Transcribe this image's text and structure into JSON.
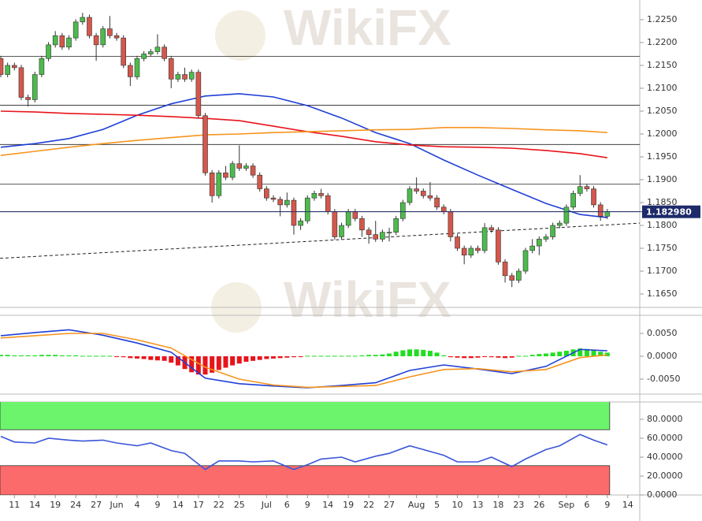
{
  "watermark": "WikiFX",
  "chart_data": [
    {
      "type": "candlestick",
      "xlim": [
        -0.116,
        93.76
      ],
      "ylim": [
        1.16207,
        1.2293
      ],
      "colors": {
        "up": "#4cbb4c",
        "down": "#d4574c"
      },
      "yticks": [
        {
          "value": 1.225,
          "label": "1.2250"
        },
        {
          "value": 1.22,
          "label": "1.2200"
        },
        {
          "value": 1.215,
          "label": "1.2150"
        },
        {
          "value": 1.21,
          "label": "1.2100"
        },
        {
          "value": 1.205,
          "label": "1.2050"
        },
        {
          "value": 1.2,
          "label": "1.2000"
        },
        {
          "value": 1.195,
          "label": "1.1950"
        },
        {
          "value": 1.19,
          "label": "1.1900"
        },
        {
          "value": 1.185,
          "label": "1.1850"
        },
        {
          "value": 1.18,
          "label": "1.1800"
        },
        {
          "value": 1.175,
          "label": "1.1750"
        },
        {
          "value": 1.17,
          "label": "1.1700"
        },
        {
          "value": 1.165,
          "label": "1.1650"
        }
      ],
      "last_price": {
        "value": 1.18298,
        "label": "1.182980"
      },
      "levels": [
        1.217,
        1.2063,
        1.1977,
        1.189,
        1.183
      ],
      "trendline": {
        "x": [
          -0.116,
          93.76
        ],
        "values": [
          1.1728,
          1.1805
        ]
      },
      "ohlc": [
        [
          1.2165,
          1.2171,
          1.2124,
          1.213
        ],
        [
          1.213,
          1.2156,
          1.2124,
          1.215
        ],
        [
          1.215,
          1.2156,
          1.2139,
          1.2145
        ],
        [
          1.2145,
          1.2151,
          1.2074,
          1.208
        ],
        [
          1.208,
          1.2086,
          1.206,
          1.2075
        ],
        [
          1.2075,
          1.2136,
          1.2069,
          1.213
        ],
        [
          1.213,
          1.2171,
          1.2124,
          1.2165
        ],
        [
          1.2165,
          1.2201,
          1.2159,
          1.2195
        ],
        [
          1.2195,
          1.2225,
          1.2189,
          1.2215
        ],
        [
          1.2215,
          1.2221,
          1.2184,
          1.219
        ],
        [
          1.219,
          1.2216,
          1.2184,
          1.221
        ],
        [
          1.221,
          1.2251,
          1.2204,
          1.2245
        ],
        [
          1.2245,
          1.2265,
          1.2239,
          1.2255
        ],
        [
          1.2255,
          1.2261,
          1.2209,
          1.2215
        ],
        [
          1.2215,
          1.2221,
          1.216,
          1.2195
        ],
        [
          1.2195,
          1.2236,
          1.2189,
          1.223
        ],
        [
          1.223,
          1.2258,
          1.2209,
          1.2215
        ],
        [
          1.2215,
          1.2221,
          1.2204,
          1.221
        ],
        [
          1.221,
          1.2216,
          1.2144,
          1.215
        ],
        [
          1.215,
          1.2156,
          1.2105,
          1.2125
        ],
        [
          1.2125,
          1.2171,
          1.2119,
          1.2165
        ],
        [
          1.2165,
          1.2181,
          1.2159,
          1.2175
        ],
        [
          1.2175,
          1.2186,
          1.2169,
          1.218
        ],
        [
          1.218,
          1.2218,
          1.2174,
          1.219
        ],
        [
          1.219,
          1.2196,
          1.2159,
          1.2165
        ],
        [
          1.2165,
          1.2171,
          1.21,
          1.212
        ],
        [
          1.212,
          1.2136,
          1.2114,
          1.213
        ],
        [
          1.213,
          1.2145,
          1.2114,
          1.212
        ],
        [
          1.212,
          1.2141,
          1.2114,
          1.2135
        ],
        [
          1.2135,
          1.2141,
          1.2034,
          1.204
        ],
        [
          1.204,
          1.2046,
          1.1909,
          1.1915
        ],
        [
          1.1915,
          1.1921,
          1.185,
          1.1865
        ],
        [
          1.1865,
          1.1921,
          1.1859,
          1.1915
        ],
        [
          1.1915,
          1.193,
          1.1899,
          1.1905
        ],
        [
          1.1905,
          1.1941,
          1.1899,
          1.1935
        ],
        [
          1.1935,
          1.1975,
          1.1919,
          1.1925
        ],
        [
          1.1925,
          1.1936,
          1.1919,
          1.193
        ],
        [
          1.193,
          1.1936,
          1.1904,
          1.191
        ],
        [
          1.191,
          1.1916,
          1.1874,
          1.188
        ],
        [
          1.188,
          1.1886,
          1.1854,
          1.186
        ],
        [
          1.186,
          1.1866,
          1.1851,
          1.1857
        ],
        [
          1.1857,
          1.1863,
          1.182,
          1.1845
        ],
        [
          1.1845,
          1.1872,
          1.1839,
          1.1855
        ],
        [
          1.1855,
          1.1861,
          1.178,
          1.18
        ],
        [
          1.18,
          1.1816,
          1.179,
          1.181
        ],
        [
          1.181,
          1.1866,
          1.1804,
          1.186
        ],
        [
          1.186,
          1.1876,
          1.1854,
          1.187
        ],
        [
          1.187,
          1.188,
          1.1859,
          1.1865
        ],
        [
          1.1865,
          1.1871,
          1.1824,
          1.183
        ],
        [
          1.183,
          1.1836,
          1.1769,
          1.1775
        ],
        [
          1.1775,
          1.1806,
          1.1769,
          1.18
        ],
        [
          1.18,
          1.1836,
          1.1794,
          1.183
        ],
        [
          1.183,
          1.1836,
          1.1809,
          1.1815
        ],
        [
          1.1815,
          1.1821,
          1.1775,
          1.179
        ],
        [
          1.179,
          1.1796,
          1.176,
          1.178
        ],
        [
          1.178,
          1.181,
          1.1764,
          1.177
        ],
        [
          1.177,
          1.1791,
          1.1764,
          1.1785
        ],
        [
          1.1785,
          1.1795,
          1.1765,
          1.1785
        ],
        [
          1.1785,
          1.1821,
          1.1779,
          1.1815
        ],
        [
          1.1815,
          1.1856,
          1.1809,
          1.185
        ],
        [
          1.185,
          1.1886,
          1.1844,
          1.188
        ],
        [
          1.188,
          1.1905,
          1.1869,
          1.1875
        ],
        [
          1.1875,
          1.1881,
          1.1859,
          1.1865
        ],
        [
          1.1865,
          1.1895,
          1.1854,
          1.186
        ],
        [
          1.186,
          1.1866,
          1.1834,
          1.184
        ],
        [
          1.184,
          1.1846,
          1.1824,
          1.183
        ],
        [
          1.183,
          1.1836,
          1.1765,
          1.1775
        ],
        [
          1.1775,
          1.1781,
          1.1744,
          1.175
        ],
        [
          1.175,
          1.1756,
          1.1715,
          1.1735
        ],
        [
          1.1735,
          1.1756,
          1.1729,
          1.175
        ],
        [
          1.175,
          1.1756,
          1.1739,
          1.1745
        ],
        [
          1.1745,
          1.1805,
          1.1739,
          1.1795
        ],
        [
          1.1795,
          1.1801,
          1.1784,
          1.179
        ],
        [
          1.179,
          1.1796,
          1.1714,
          1.172
        ],
        [
          1.172,
          1.1726,
          1.1675,
          1.169
        ],
        [
          1.169,
          1.1696,
          1.1665,
          1.168
        ],
        [
          1.168,
          1.1706,
          1.1674,
          1.17
        ],
        [
          1.17,
          1.1751,
          1.1694,
          1.1745
        ],
        [
          1.1745,
          1.177,
          1.1739,
          1.1755
        ],
        [
          1.1755,
          1.1776,
          1.1735,
          1.177
        ],
        [
          1.177,
          1.1781,
          1.1764,
          1.1775
        ],
        [
          1.1775,
          1.1806,
          1.1769,
          1.18
        ],
        [
          1.18,
          1.1811,
          1.1794,
          1.1805
        ],
        [
          1.1805,
          1.1846,
          1.1799,
          1.184
        ],
        [
          1.184,
          1.1876,
          1.1834,
          1.187
        ],
        [
          1.187,
          1.191,
          1.1864,
          1.1885
        ],
        [
          1.1885,
          1.1891,
          1.1874,
          1.188
        ],
        [
          1.188,
          1.1886,
          1.1839,
          1.1845
        ],
        [
          1.1845,
          1.1851,
          1.181,
          1.182
        ],
        [
          1.182,
          1.1836,
          1.1814,
          1.183
        ]
      ],
      "series": [
        {
          "color": "#1f3fd6",
          "x": [
            0,
            5,
            10,
            15,
            20,
            25,
            30,
            35,
            40,
            45,
            50,
            55,
            60,
            65,
            70,
            75,
            80,
            85,
            89
          ],
          "values": [
            1.1971,
            1.1979,
            1.199,
            1.201,
            1.2041,
            1.2066,
            1.2083,
            1.2088,
            1.2081,
            1.2062,
            1.2035,
            1.2003,
            1.1979,
            1.1943,
            1.191,
            1.1879,
            1.1848,
            1.1824,
            1.1817
          ]
        },
        {
          "color": "#e8141b",
          "x": [
            0,
            5,
            10,
            15,
            20,
            25,
            30,
            35,
            40,
            45,
            50,
            55,
            60,
            65,
            70,
            75,
            80,
            85,
            89
          ],
          "values": [
            1.205,
            1.2048,
            1.2045,
            1.2043,
            1.2041,
            1.2038,
            1.2034,
            1.2029,
            1.2017,
            1.2005,
            1.1995,
            1.1983,
            1.1976,
            1.1972,
            1.1971,
            1.1969,
            1.1964,
            1.1957,
            1.1948
          ]
        },
        {
          "color": "#f7941d",
          "x": [
            0,
            5,
            10,
            15,
            20,
            25,
            30,
            35,
            40,
            45,
            50,
            55,
            60,
            65,
            70,
            75,
            80,
            85,
            89
          ],
          "values": [
            1.1953,
            1.1962,
            1.1971,
            1.1979,
            1.1986,
            1.1992,
            1.1998,
            1.2,
            1.2003,
            1.2005,
            1.2007,
            1.2009,
            1.201,
            1.2014,
            1.2014,
            1.2012,
            1.2009,
            1.2007,
            1.2003
          ]
        }
      ]
    },
    {
      "type": "macd",
      "xlim": [
        -0.116,
        93.76
      ],
      "ylim": [
        -0.00828,
        0.00897
      ],
      "yticks": [
        {
          "value": 0.005,
          "label": "0.0050"
        },
        {
          "value": 0,
          "label": "0.0000"
        },
        {
          "value": -0.005,
          "label": "-0.0050"
        }
      ],
      "colors": {
        "up": "#22dd22",
        "down": "#e8141b"
      },
      "histogram": [
        0.0003,
        0.0003,
        0.0002,
        0.0002,
        0.0002,
        0.0002,
        0.0003,
        0.0003,
        0.0003,
        0.0002,
        0.0002,
        0.0002,
        0.0001,
        0.0001,
        0.0001,
        0.0001,
        0.0001,
        -0.0001,
        -0.0002,
        -0.0004,
        -0.0005,
        -0.0006,
        -0.0008,
        -0.0009,
        -0.001,
        -0.0014,
        -0.002,
        -0.0028,
        -0.0035,
        -0.004,
        -0.004,
        -0.0036,
        -0.003,
        -0.0025,
        -0.002,
        -0.0016,
        -0.0012,
        -0.001,
        -0.0008,
        -0.0006,
        -0.0005,
        -0.0004,
        -0.0003,
        -0.0002,
        -0.0001,
        0.0001,
        0.0001,
        0.0001,
        0.0001,
        0.0001,
        0.0001,
        0.0001,
        0.0001,
        0.0002,
        0.0003,
        0.0003,
        0.0004,
        0.0006,
        0.001,
        0.0013,
        0.0015,
        0.0015,
        0.0014,
        0.0012,
        0.0008,
        0.0002,
        -0.0002,
        -0.0003,
        -0.0004,
        -0.0004,
        -0.0003,
        -0.0001,
        -0.0002,
        -0.0003,
        -0.0004,
        -0.0003,
        0.0001,
        0.0001,
        0.0003,
        0.0005,
        0.0006,
        0.0008,
        0.001,
        0.0012,
        0.0015,
        0.0017,
        0.0016,
        0.0013,
        0.001,
        0.0008
      ],
      "series": [
        {
          "color": "#1f3fd6",
          "x": [
            0,
            5,
            10,
            15,
            20,
            25,
            30,
            35,
            40,
            45,
            50,
            55,
            60,
            65,
            70,
            75,
            80,
            85,
            89
          ],
          "values": [
            0.0045,
            0.0052,
            0.0058,
            0.0046,
            0.0029,
            0.0009,
            -0.0048,
            -0.006,
            -0.0065,
            -0.0069,
            -0.0064,
            -0.0058,
            -0.0031,
            -0.0019,
            -0.0028,
            -0.0038,
            -0.0022,
            0.0015,
            0.0012
          ]
        },
        {
          "color": "#f7941d",
          "x": [
            0,
            5,
            10,
            15,
            20,
            25,
            30,
            35,
            40,
            45,
            50,
            55,
            60,
            65,
            70,
            75,
            80,
            85,
            89
          ],
          "values": [
            0.004,
            0.0045,
            0.005,
            0.005,
            0.0036,
            0.0018,
            -0.0024,
            -0.005,
            -0.0063,
            -0.0068,
            -0.0066,
            -0.0064,
            -0.0045,
            -0.0029,
            -0.0027,
            -0.0034,
            -0.0029,
            -0.0003,
            0.0003
          ]
        }
      ]
    },
    {
      "type": "line",
      "xlim": [
        -0.116,
        93.76
      ],
      "ylim": [
        0,
        98.3
      ],
      "yticks": [
        {
          "value": 80,
          "label": "80.0000"
        },
        {
          "value": 60,
          "label": "60.0000"
        },
        {
          "value": 40,
          "label": "40.0000"
        },
        {
          "value": 20,
          "label": "20.0000"
        },
        {
          "value": 0,
          "label": "0.0000"
        }
      ],
      "bands": [
        {
          "from": 69,
          "to": 100,
          "color": "#6cf56c"
        },
        {
          "from": 0,
          "to": 31,
          "color": "#fb6b6b"
        }
      ],
      "series": [
        {
          "color": "#3a55d8",
          "x": [
            0,
            2,
            5,
            7,
            10,
            12,
            15,
            17,
            20,
            22,
            25,
            27,
            30,
            32,
            35,
            37,
            40,
            43,
            45,
            47,
            50,
            52,
            55,
            57,
            60,
            62,
            65,
            67,
            70,
            72,
            75,
            77,
            80,
            82,
            85,
            87,
            89
          ],
          "values": [
            62,
            56,
            55,
            60,
            58,
            57,
            58,
            55,
            52,
            55,
            47,
            44,
            27,
            36,
            36,
            35,
            36,
            27,
            32,
            38,
            40,
            35,
            41,
            44,
            52,
            48,
            42,
            35,
            35,
            40,
            30,
            38,
            48,
            52,
            64,
            58,
            53
          ]
        }
      ],
      "xticks": [
        {
          "value": 2,
          "label": "11"
        },
        {
          "value": 5,
          "label": "14"
        },
        {
          "value": 8,
          "label": "19"
        },
        {
          "value": 11,
          "label": "24"
        },
        {
          "value": 14,
          "label": "27"
        },
        {
          "value": 17,
          "label": "Jun"
        },
        {
          "value": 20,
          "label": "4"
        },
        {
          "value": 23,
          "label": "9"
        },
        {
          "value": 26,
          "label": "14"
        },
        {
          "value": 29,
          "label": "17"
        },
        {
          "value": 32,
          "label": "22"
        },
        {
          "value": 35,
          "label": "25"
        },
        {
          "value": 39,
          "label": "Jul"
        },
        {
          "value": 42,
          "label": "6"
        },
        {
          "value": 45,
          "label": "9"
        },
        {
          "value": 48,
          "label": "14"
        },
        {
          "value": 51,
          "label": "19"
        },
        {
          "value": 54,
          "label": "22"
        },
        {
          "value": 57,
          "label": "27"
        },
        {
          "value": 61,
          "label": "Aug"
        },
        {
          "value": 64,
          "label": "5"
        },
        {
          "value": 67,
          "label": "10"
        },
        {
          "value": 70,
          "label": "13"
        },
        {
          "value": 73,
          "label": "18"
        },
        {
          "value": 76,
          "label": "23"
        },
        {
          "value": 79,
          "label": "26"
        },
        {
          "value": 83,
          "label": "Sep"
        },
        {
          "value": 86,
          "label": "6"
        },
        {
          "value": 89,
          "label": "9"
        },
        {
          "value": 92,
          "label": "14"
        }
      ]
    }
  ]
}
